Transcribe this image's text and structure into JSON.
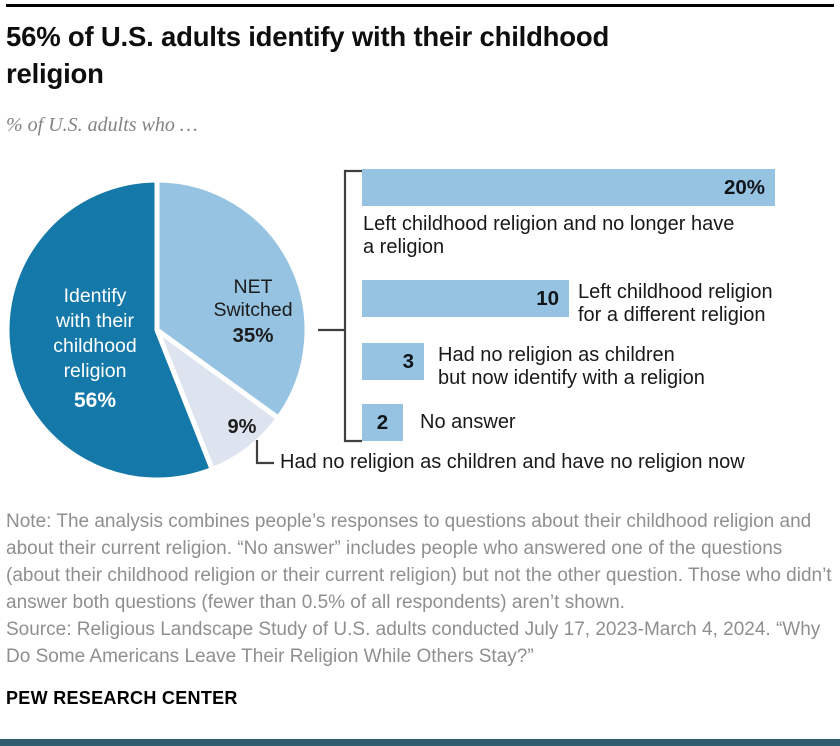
{
  "header": {
    "title": "56% of U.S. adults identify with their childhood religion",
    "title_lines": [
      "56% of U.S. adults identify with their childhood",
      "religion"
    ],
    "subtitle": "% of U.S. adults who …"
  },
  "chart_data": [
    {
      "type": "pie",
      "title": "56% of U.S. adults identify with their childhood religion",
      "subtitle": "% of U.S. adults who …",
      "labels": [
        "NET Switched",
        "Had no religion as children and have no religion now",
        "Identify with their childhood religion"
      ],
      "values": [
        35,
        9,
        56
      ],
      "display_values": [
        "35%",
        "9%",
        "56%"
      ],
      "colors": [
        "#95c3e1",
        "#dde4ef",
        "#1478a8"
      ],
      "start": "12 o'clock",
      "direction": "clockwise"
    },
    {
      "type": "bar",
      "orientation": "horizontal",
      "categories": [
        "Left childhood religion and no longer have a religion",
        "Left childhood religion for a different religion",
        "Had no religion as children but now identify with a religion",
        "No answer"
      ],
      "values": [
        20,
        10,
        3,
        2
      ],
      "value_labels": [
        "20%",
        "10",
        "3",
        "2"
      ],
      "xlim": [
        0,
        20
      ],
      "bar_color": "#95c3e1",
      "legend": "none",
      "grid": false
    }
  ],
  "pie_labels": {
    "identify_lines": [
      "Identify",
      "with their",
      "childhood",
      "religion"
    ],
    "identify_value": "56%",
    "net_lines": [
      "NET",
      "Switched"
    ],
    "net_value": "35%",
    "nine_value": "9%",
    "callout": "Had no religion as children and have no religion now"
  },
  "bar_captions": [
    {
      "lines": [
        "Left childhood religion and no longer have",
        "a religion"
      ]
    },
    {
      "lines": [
        "Left childhood religion",
        "for a different religion"
      ]
    },
    {
      "lines": [
        "Had no religion as children",
        "but now identify with a religion"
      ]
    },
    {
      "lines": [
        "No answer"
      ]
    }
  ],
  "footer": {
    "note": "Note: The analysis combines people’s responses to questions about their childhood religion and about their current religion. “No answer” includes people who answered one of the questions (about their childhood religion or their current religion) but not the other question. Those who didn’t answer both questions (fewer than 0.5% of all respondents) aren’t shown.",
    "source": "Source: Religious Landscape Study of U.S. adults conducted July 17, 2023-March 4, 2024. “Why Do Some Americans Leave Their Religion While Others Stay?”",
    "brand": "PEW RESEARCH CENTER"
  },
  "colors": {
    "dark_blue": "#1478a8",
    "light_blue": "#95c3e1",
    "pale_blue": "#dde4ef",
    "text_dark": "#1a1a1a",
    "note_gray": "#8f8f8f",
    "top_rule": "#000000",
    "bottom_rule": "#2e5d70"
  }
}
